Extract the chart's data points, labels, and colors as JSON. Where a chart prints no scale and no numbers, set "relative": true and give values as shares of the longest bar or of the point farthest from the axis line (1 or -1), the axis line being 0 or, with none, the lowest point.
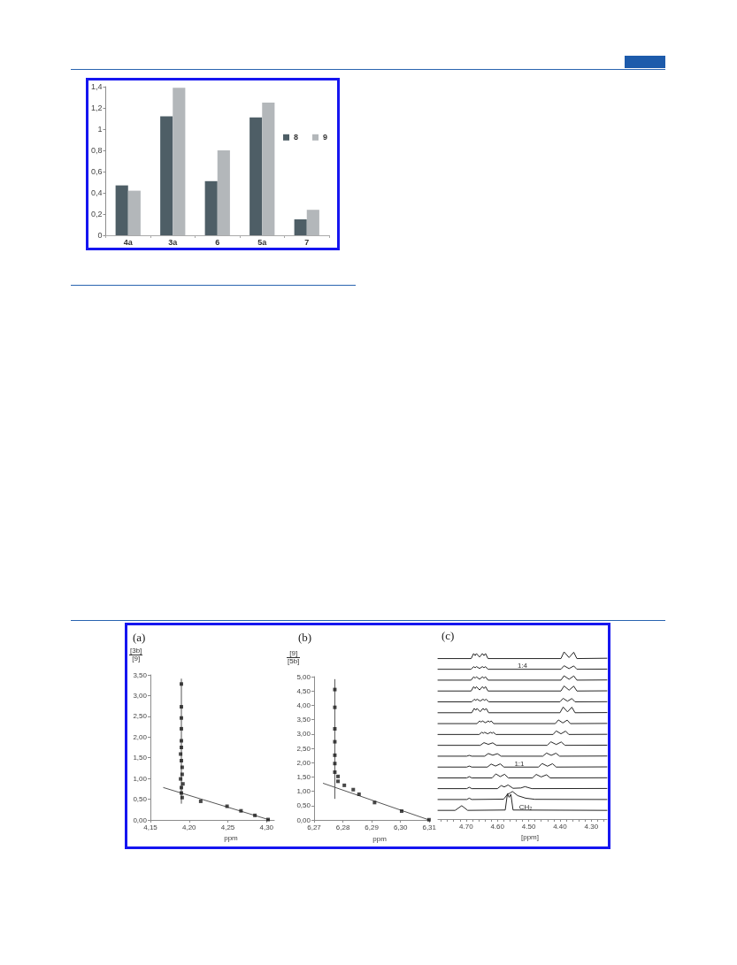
{
  "chart_data": [
    {
      "type": "bar",
      "categories": [
        "4a",
        "3a",
        "6",
        "5a",
        "7"
      ],
      "series": [
        {
          "name": "8",
          "color": "#4e5e66",
          "values": [
            0.47,
            1.12,
            0.51,
            1.11,
            0.15
          ]
        },
        {
          "name": "9",
          "color": "#b3b7ba",
          "values": [
            0.42,
            1.39,
            0.8,
            1.25,
            0.24
          ]
        }
      ],
      "ylim": [
        0,
        1.4
      ],
      "yticks": [
        0,
        {
          "value": 0.2,
          "label": "0,2"
        },
        {
          "value": 0.4,
          "label": "0,4"
        },
        {
          "value": 0.6,
          "label": "0,6"
        },
        {
          "value": 0.8,
          "label": "0,8"
        },
        1,
        {
          "value": 1.2,
          "label": "1,2"
        },
        {
          "value": 1.4,
          "label": "1,4"
        }
      ],
      "legend": "right"
    },
    {
      "type": "scatter",
      "title": "(a)",
      "xlabel": "ppm",
      "ylabel": "[3b]\n[9]",
      "xlim": [
        4.15,
        4.31
      ],
      "xticks": [
        {
          "value": 4.15,
          "label": "4,15"
        },
        {
          "value": 4.2,
          "label": "4,20"
        },
        {
          "value": 4.25,
          "label": "4,25"
        },
        {
          "value": 4.3,
          "label": "4,30"
        }
      ],
      "ylim": [
        0,
        3.5
      ],
      "yticks": [
        {
          "value": 0,
          "label": "0,00"
        },
        {
          "value": 0.5,
          "label": "0,50"
        },
        {
          "value": 1,
          "label": "1,00"
        },
        {
          "value": 1.5,
          "label": "1,50"
        },
        {
          "value": 2,
          "label": "2,00"
        },
        {
          "value": 2.5,
          "label": "2,50"
        },
        {
          "value": 3,
          "label": "3,00"
        },
        {
          "value": 3.5,
          "label": "3,50"
        }
      ],
      "marker": "square",
      "series": [
        {
          "type": "line",
          "marker": "none",
          "color": "#555555",
          "x": [
            4.19,
            4.19
          ],
          "values": [
            0.4,
            3.4
          ]
        },
        {
          "type": "line",
          "marker": "none",
          "color": "#555555",
          "x": [
            4.167,
            4.304
          ],
          "values": [
            0.78,
            0
          ]
        },
        {
          "color": "#1a1a1a",
          "x": [
            4.19,
            4.19,
            4.19,
            4.19,
            4.19,
            4.19,
            4.189,
            4.19,
            4.191,
            4.191,
            4.189,
            4.192,
            4.19,
            4.19,
            4.191,
            4.215,
            4.249,
            4.267,
            4.285,
            4.302
          ],
          "values": [
            3.28,
            2.73,
            2.46,
            2.2,
            1.91,
            1.75,
            1.59,
            1.43,
            1.27,
            1.1,
            0.99,
            0.87,
            0.78,
            0.65,
            0.54,
            0.45,
            0.33,
            0.22,
            0.11,
            0.01
          ]
        }
      ]
    },
    {
      "type": "scatter",
      "title": "(b)",
      "xlabel": "ppm",
      "ylabel": "[9]\n[5b]",
      "xlim": [
        6.27,
        6.31
      ],
      "xticks": [
        {
          "value": 6.27,
          "label": "6,27"
        },
        {
          "value": 6.28,
          "label": "6,28"
        },
        {
          "value": 6.29,
          "label": "6,29"
        },
        {
          "value": 6.3,
          "label": "6,30"
        },
        {
          "value": 6.31,
          "label": "6,31"
        }
      ],
      "ylim": [
        0,
        5
      ],
      "yticks": [
        {
          "value": 0,
          "label": "0,00"
        },
        {
          "value": 0.5,
          "label": "0,50"
        },
        {
          "value": 1,
          "label": "1,00"
        },
        {
          "value": 1.5,
          "label": "1,50"
        },
        {
          "value": 2,
          "label": "2,00"
        },
        {
          "value": 2.5,
          "label": "2,50"
        },
        {
          "value": 3,
          "label": "3,00"
        },
        {
          "value": 3.5,
          "label": "3,50"
        },
        {
          "value": 4,
          "label": "4,00"
        },
        {
          "value": 4.5,
          "label": "4,50"
        },
        {
          "value": 5,
          "label": "5,00"
        }
      ],
      "marker": "square",
      "series": [
        {
          "type": "line",
          "marker": "none",
          "color": "#555555",
          "x": [
            6.2772,
            6.2772
          ],
          "values": [
            0.75,
            4.9
          ]
        },
        {
          "type": "line",
          "marker": "none",
          "color": "#555555",
          "x": [
            6.2732,
            6.31
          ],
          "values": [
            1.28,
            0
          ]
        },
        {
          "color": "#1a1a1a",
          "x": [
            6.2772,
            6.2772,
            6.2772,
            6.2772,
            6.2772,
            6.2772,
            6.2772,
            6.2783,
            6.2783,
            6.2805,
            6.2836,
            6.2856,
            6.291,
            6.3004,
            6.3099
          ],
          "values": [
            4.55,
            3.93,
            3.18,
            2.73,
            2.26,
            1.97,
            1.67,
            1.52,
            1.35,
            1.21,
            1.06,
            0.9,
            0.61,
            0.31,
            0.01
          ]
        }
      ]
    },
    {
      "type": "line",
      "title": "(c)",
      "xlabel": "[ppm]",
      "relative": true,
      "marker": "none",
      "xlim": [
        4.79,
        4.25
      ],
      "xticks": [
        {
          "value": 4.78,
          "label": null
        },
        {
          "value": 4.76,
          "label": null
        },
        {
          "value": 4.74,
          "label": null
        },
        {
          "value": 4.72,
          "label": null
        },
        {
          "value": 4.7,
          "label": "4.70"
        },
        {
          "value": 4.68,
          "label": null
        },
        {
          "value": 4.66,
          "label": null
        },
        {
          "value": 4.64,
          "label": null
        },
        {
          "value": 4.62,
          "label": null
        },
        {
          "value": 4.6,
          "label": "4.60"
        },
        {
          "value": 4.58,
          "label": null
        },
        {
          "value": 4.56,
          "label": null
        },
        {
          "value": 4.54,
          "label": null
        },
        {
          "value": 4.52,
          "label": null
        },
        {
          "value": 4.5,
          "label": "4.50"
        },
        {
          "value": 4.48,
          "label": null
        },
        {
          "value": 4.46,
          "label": null
        },
        {
          "value": 4.44,
          "label": null
        },
        {
          "value": 4.42,
          "label": null
        },
        {
          "value": 4.4,
          "label": "4.40"
        },
        {
          "value": 4.38,
          "label": null
        },
        {
          "value": 4.36,
          "label": null
        },
        {
          "value": 4.34,
          "label": null
        },
        {
          "value": 4.32,
          "label": null
        },
        {
          "value": 4.3,
          "label": "4.30"
        },
        {
          "value": 4.28,
          "label": null
        },
        {
          "value": 4.26,
          "label": null
        }
      ],
      "annotations": [
        {
          "text": "1:4",
          "x": 4.52,
          "y": 0.896
        },
        {
          "text": "1:1",
          "x": 4.53,
          "y": 0.311
        },
        {
          "text": "CH₂",
          "x": 4.51,
          "y": 0.052
        }
      ],
      "series": [
        {
          "color": "#262626",
          "x": [
            4.79,
            4.684,
            4.676,
            4.671,
            4.667,
            4.657,
            4.648,
            4.643,
            4.638,
            4.63,
            4.397,
            4.387,
            4.371,
            4.356,
            4.346,
            4.25
          ],
          "values": [
            0.96,
            0.96,
            0.99,
            0.978,
            0.99,
            0.969,
            0.99,
            0.978,
            0.99,
            0.96,
            0.96,
            1.0,
            0.966,
            0.998,
            0.96,
            0.962
          ]
        },
        {
          "color": "#262626",
          "x": [
            4.79,
            4.684,
            4.676,
            4.671,
            4.667,
            4.657,
            4.648,
            4.643,
            4.638,
            4.63,
            4.397,
            4.387,
            4.371,
            4.356,
            4.346,
            4.25
          ],
          "values": [
            0.896,
            0.896,
            0.912,
            0.905,
            0.912,
            0.901,
            0.912,
            0.905,
            0.912,
            0.896,
            0.896,
            0.917,
            0.9,
            0.916,
            0.896,
            0.897
          ]
        },
        {
          "color": "#262626",
          "x": [
            4.79,
            4.684,
            4.676,
            4.671,
            4.667,
            4.657,
            4.648,
            4.643,
            4.638,
            4.63,
            4.397,
            4.387,
            4.371,
            4.356,
            4.346,
            4.25
          ],
          "values": [
            0.831,
            0.831,
            0.851,
            0.843,
            0.851,
            0.836,
            0.851,
            0.843,
            0.851,
            0.831,
            0.831,
            0.857,
            0.836,
            0.856,
            0.831,
            0.832
          ]
        },
        {
          "color": "#262626",
          "x": [
            4.79,
            4.684,
            4.676,
            4.671,
            4.667,
            4.657,
            4.648,
            4.643,
            4.638,
            4.63,
            4.397,
            4.387,
            4.371,
            4.356,
            4.346,
            4.25
          ],
          "values": [
            0.766,
            0.766,
            0.792,
            0.781,
            0.792,
            0.772,
            0.792,
            0.781,
            0.792,
            0.766,
            0.766,
            0.796,
            0.771,
            0.795,
            0.766,
            0.767
          ]
        },
        {
          "color": "#262626",
          "x": [
            4.79,
            4.682,
            4.674,
            4.669,
            4.665,
            4.655,
            4.646,
            4.641,
            4.636,
            4.628,
            4.4,
            4.39,
            4.376,
            4.362,
            4.352,
            4.25
          ],
          "values": [
            0.701,
            0.701,
            0.717,
            0.71,
            0.717,
            0.706,
            0.717,
            0.71,
            0.717,
            0.701,
            0.701,
            0.722,
            0.705,
            0.721,
            0.701,
            0.702
          ]
        },
        {
          "color": "#262626",
          "x": [
            4.79,
            4.682,
            4.674,
            4.669,
            4.665,
            4.655,
            4.646,
            4.641,
            4.636,
            4.628,
            4.4,
            4.39,
            4.376,
            4.362,
            4.352,
            4.25
          ],
          "values": [
            0.636,
            0.636,
            0.662,
            0.651,
            0.662,
            0.642,
            0.662,
            0.651,
            0.662,
            0.636,
            0.636,
            0.67,
            0.641,
            0.669,
            0.636,
            0.637
          ]
        },
        {
          "color": "#262626",
          "x": [
            4.79,
            4.665,
            4.657,
            4.652,
            4.648,
            4.638,
            4.629,
            4.624,
            4.62,
            4.612,
            4.415,
            4.405,
            4.391,
            4.377,
            4.367,
            4.25
          ],
          "values": [
            0.571,
            0.571,
            0.587,
            0.58,
            0.587,
            0.576,
            0.587,
            0.58,
            0.587,
            0.571,
            0.571,
            0.593,
            0.575,
            0.592,
            0.571,
            0.572
          ]
        },
        {
          "color": "#262626",
          "x": [
            4.79,
            4.658,
            4.65,
            4.645,
            4.641,
            4.631,
            4.622,
            4.617,
            4.613,
            4.605,
            4.422,
            4.412,
            4.397,
            4.382,
            4.372,
            4.25
          ],
          "values": [
            0.506,
            0.506,
            0.519,
            0.513,
            0.519,
            0.51,
            0.519,
            0.513,
            0.519,
            0.506,
            0.506,
            0.527,
            0.51,
            0.526,
            0.506,
            0.507
          ]
        },
        {
          "color": "#262626",
          "x": [
            4.79,
            4.655,
            4.643,
            4.629,
            4.615,
            4.603,
            4.441,
            4.429,
            4.412,
            4.396,
            4.384,
            4.25
          ],
          "values": [
            0.441,
            0.441,
            0.457,
            0.447,
            0.456,
            0.441,
            0.441,
            0.462,
            0.446,
            0.461,
            0.441,
            0.442
          ]
        },
        {
          "color": "#262626",
          "x": [
            4.79,
            4.698,
            4.69,
            4.682,
            4.641,
            4.629,
            4.615,
            4.6,
            4.588,
            4.455,
            4.443,
            4.428,
            4.413,
            4.401,
            4.25
          ],
          "values": [
            0.376,
            0.376,
            0.381,
            0.376,
            0.376,
            0.392,
            0.382,
            0.391,
            0.376,
            0.376,
            0.395,
            0.381,
            0.394,
            0.376,
            0.377
          ]
        },
        {
          "color": "#262626",
          "x": [
            4.79,
            4.698,
            4.69,
            4.682,
            4.632,
            4.62,
            4.606,
            4.591,
            4.579,
            4.469,
            4.457,
            4.44,
            4.424,
            4.412,
            4.25
          ],
          "values": [
            0.311,
            0.311,
            0.317,
            0.311,
            0.311,
            0.329,
            0.317,
            0.33,
            0.311,
            0.311,
            0.332,
            0.316,
            0.331,
            0.311,
            0.312
          ]
        },
        {
          "color": "#262626",
          "x": [
            4.79,
            4.698,
            4.69,
            4.682,
            4.617,
            4.605,
            4.591,
            4.577,
            4.565,
            4.488,
            4.476,
            4.46,
            4.443,
            4.431,
            4.25
          ],
          "values": [
            0.246,
            0.246,
            0.254,
            0.246,
            0.246,
            0.27,
            0.254,
            0.268,
            0.246,
            0.246,
            0.267,
            0.252,
            0.265,
            0.246,
            0.247
          ]
        },
        {
          "color": "#262626",
          "x": [
            4.79,
            4.698,
            4.69,
            4.682,
            4.6,
            4.588,
            4.578,
            4.566,
            4.55,
            4.525,
            4.512,
            4.49,
            4.25
          ],
          "values": [
            0.182,
            0.182,
            0.19,
            0.182,
            0.182,
            0.2,
            0.192,
            0.204,
            0.184,
            0.186,
            0.194,
            0.182,
            0.183
          ]
        },
        {
          "color": "#262626",
          "x": [
            4.79,
            4.698,
            4.69,
            4.682,
            4.58,
            4.567,
            4.56,
            4.552,
            4.535,
            4.51,
            4.48,
            4.25
          ],
          "values": [
            0.117,
            0.117,
            0.125,
            0.117,
            0.119,
            0.15,
            0.155,
            0.165,
            0.14,
            0.125,
            0.118,
            0.117
          ]
        },
        {
          "color": "#262626",
          "x": [
            4.79,
            4.735,
            4.714,
            4.695,
            4.575,
            4.568,
            4.5625,
            4.557,
            4.55,
            4.25
          ],
          "values": [
            0.052,
            0.052,
            0.08,
            0.052,
            0.054,
            0.151,
            0.13,
            0.148,
            0.054,
            0.052
          ]
        }
      ]
    }
  ]
}
